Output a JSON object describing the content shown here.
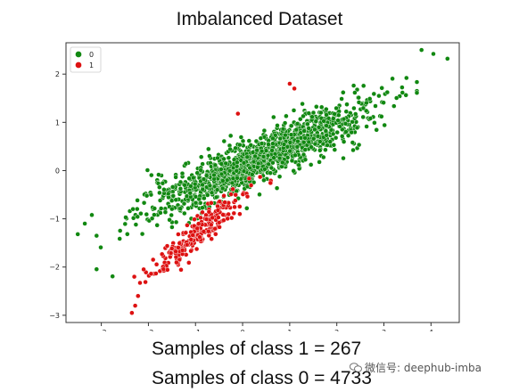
{
  "chart_data": {
    "type": "scatter",
    "title": "Imbalanced Dataset",
    "xlabel": "",
    "ylabel": "",
    "xlim": [
      -3.75,
      4.6
    ],
    "ylim": [
      -3.15,
      2.65
    ],
    "x_ticks": [
      -3,
      -2,
      -1,
      0,
      1,
      2,
      3,
      4
    ],
    "y_ticks": [
      -3,
      -2,
      -1,
      0,
      1,
      2
    ],
    "grid": false,
    "legend_position": "top-left",
    "series": [
      {
        "name": "0",
        "color": "#118811",
        "count": 4733,
        "trend": {
          "slope": 0.44,
          "intercept": 0.08
        },
        "x_range": [
          -3.5,
          4.35
        ],
        "sample_points": [
          [
            -3.5,
            -1.32
          ],
          [
            -3.35,
            -1.1
          ],
          [
            -3.2,
            -0.92
          ],
          [
            -3.1,
            -1.35
          ],
          [
            3.8,
            2.5
          ],
          [
            4.05,
            2.42
          ],
          [
            4.35,
            2.32
          ]
        ]
      },
      {
        "name": "1",
        "color": "#dd1111",
        "count": 267,
        "trend": {
          "slope": 0.8,
          "intercept": -0.53
        },
        "x_range": [
          -2.4,
          1.2
        ],
        "sample_points": [
          [
            -2.35,
            -2.95
          ],
          [
            -2.28,
            -2.8
          ],
          [
            -2.22,
            -2.6
          ],
          [
            -2.3,
            -2.2
          ],
          [
            -2.1,
            -2.05
          ],
          [
            1.1,
            1.7
          ],
          [
            1.0,
            1.8
          ],
          [
            -0.1,
            1.18
          ]
        ]
      }
    ]
  },
  "captions": {
    "class1": "Samples of class 1 = 267",
    "class0": "Samples of class 0 = 4733"
  },
  "watermark": {
    "text": "微信号: deephub-imba"
  }
}
